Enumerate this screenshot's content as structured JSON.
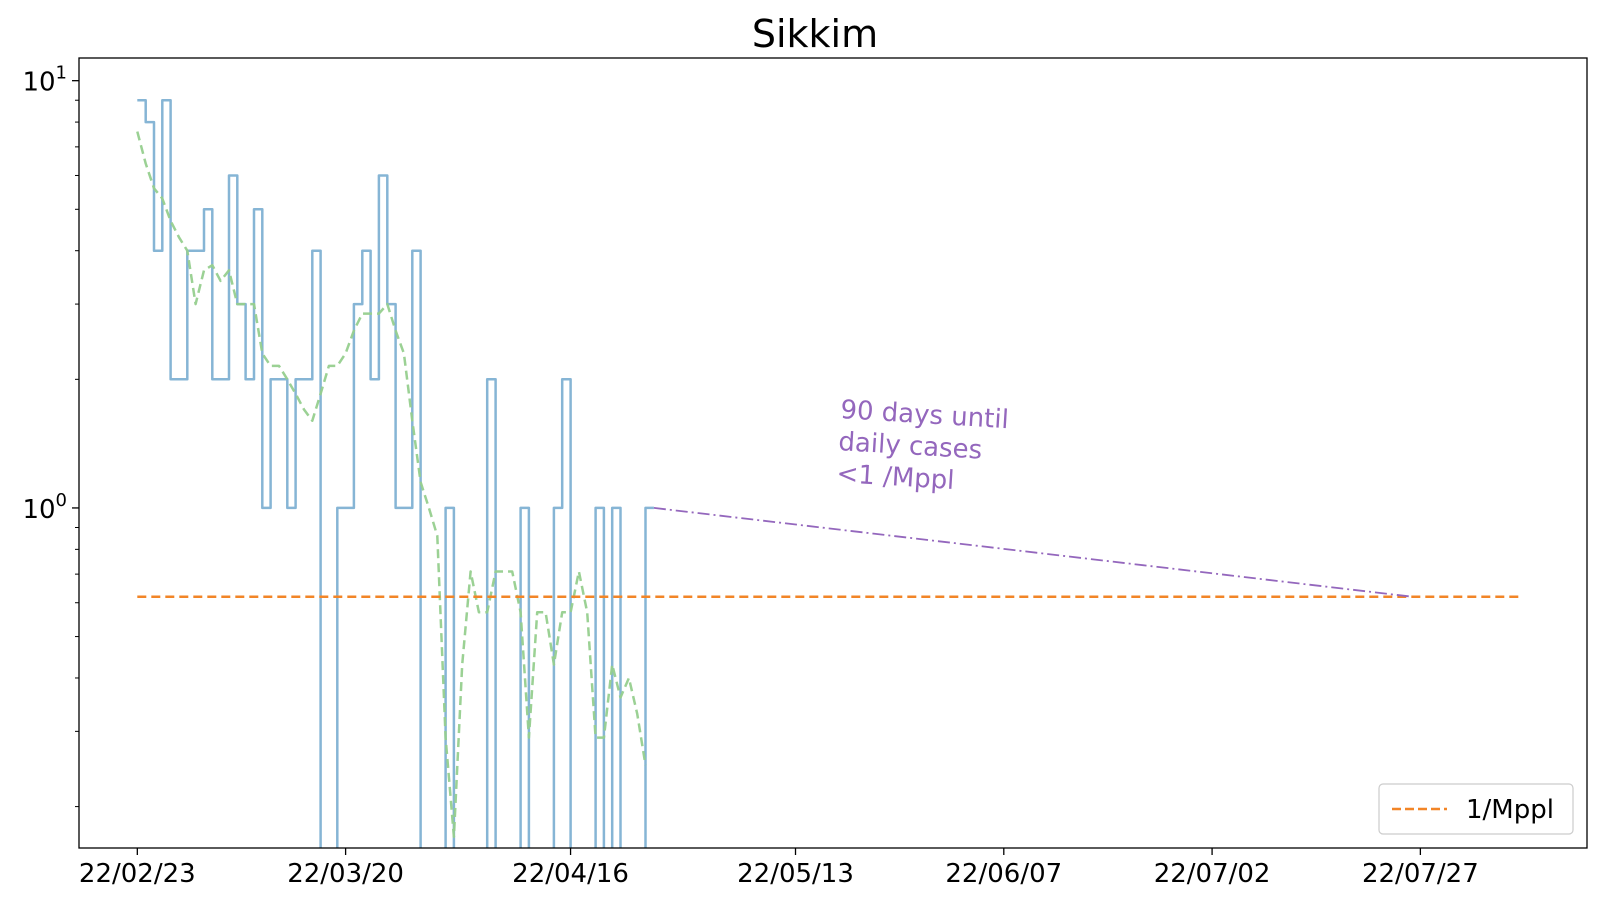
{
  "chart_data": {
    "type": "line",
    "title": "Sikkim",
    "xlabel": "",
    "ylabel": "",
    "yscale": "log",
    "ylim": [
      0.16,
      11.3
    ],
    "xlim": [
      "2022-02-16",
      "2022-08-16"
    ],
    "y_ticks": [
      {
        "value": 10,
        "base": "10",
        "exp": "1"
      },
      {
        "value": 1,
        "base": "10",
        "exp": "0"
      }
    ],
    "x_ticks": [
      {
        "date": "2022-02-23",
        "label": "22/02/23"
      },
      {
        "date": "2022-03-20",
        "label": "22/03/20"
      },
      {
        "date": "2022-04-16",
        "label": "22/04/16"
      },
      {
        "date": "2022-05-13",
        "label": "22/05/13"
      },
      {
        "date": "2022-06-07",
        "label": "22/06/07"
      },
      {
        "date": "2022-07-02",
        "label": "22/07/02"
      },
      {
        "date": "2022-07-27",
        "label": "22/07/27"
      }
    ],
    "grid": false,
    "legend_position": "bottom-right",
    "series": [
      {
        "kind": "daily",
        "color": "#7fb1d3",
        "style": "solid",
        "points": [
          [
            "2022-02-23",
            9
          ],
          [
            "2022-02-24",
            8
          ],
          [
            "2022-02-25",
            4
          ],
          [
            "2022-02-26",
            9
          ],
          [
            "2022-02-27",
            2
          ],
          [
            "2022-02-28",
            2
          ],
          [
            "2022-03-01",
            4
          ],
          [
            "2022-03-02",
            4
          ],
          [
            "2022-03-03",
            5
          ],
          [
            "2022-03-04",
            2
          ],
          [
            "2022-03-05",
            2
          ],
          [
            "2022-03-06",
            6
          ],
          [
            "2022-03-07",
            3
          ],
          [
            "2022-03-08",
            2
          ],
          [
            "2022-03-09",
            5
          ],
          [
            "2022-03-10",
            1
          ],
          [
            "2022-03-11",
            2
          ],
          [
            "2022-03-12",
            2
          ],
          [
            "2022-03-13",
            1
          ],
          [
            "2022-03-14",
            2
          ],
          [
            "2022-03-15",
            2
          ],
          [
            "2022-03-16",
            4
          ],
          [
            "2022-03-17",
            0
          ],
          [
            "2022-03-18",
            0
          ],
          [
            "2022-03-19",
            1
          ],
          [
            "2022-03-20",
            1
          ],
          [
            "2022-03-21",
            3
          ],
          [
            "2022-03-22",
            4
          ],
          [
            "2022-03-23",
            2
          ],
          [
            "2022-03-24",
            6
          ],
          [
            "2022-03-25",
            3
          ],
          [
            "2022-03-26",
            1
          ],
          [
            "2022-03-27",
            1
          ],
          [
            "2022-03-28",
            4
          ],
          [
            "2022-03-29",
            0
          ],
          [
            "2022-03-30",
            0
          ],
          [
            "2022-03-31",
            0
          ],
          [
            "2022-04-01",
            1
          ],
          [
            "2022-04-02",
            0
          ],
          [
            "2022-04-03",
            0
          ],
          [
            "2022-04-04",
            0
          ],
          [
            "2022-04-05",
            0
          ],
          [
            "2022-04-06",
            2
          ],
          [
            "2022-04-07",
            0
          ],
          [
            "2022-04-08",
            0
          ],
          [
            "2022-04-09",
            0
          ],
          [
            "2022-04-10",
            1
          ],
          [
            "2022-04-11",
            0
          ],
          [
            "2022-04-12",
            0
          ],
          [
            "2022-04-13",
            0
          ],
          [
            "2022-04-14",
            1
          ],
          [
            "2022-04-15",
            2
          ],
          [
            "2022-04-16",
            0
          ],
          [
            "2022-04-17",
            0
          ],
          [
            "2022-04-18",
            0
          ],
          [
            "2022-04-19",
            1
          ],
          [
            "2022-04-20",
            0
          ],
          [
            "2022-04-21",
            1
          ],
          [
            "2022-04-22",
            0
          ],
          [
            "2022-04-23",
            0
          ],
          [
            "2022-04-24",
            0
          ],
          [
            "2022-04-25",
            1
          ]
        ]
      },
      {
        "kind": "rolling-average",
        "color": "#96cf8e",
        "style": "dashed",
        "points": [
          [
            "2022-02-23",
            7.6
          ],
          [
            "2022-02-24",
            6.4
          ],
          [
            "2022-02-25",
            5.6
          ],
          [
            "2022-02-26",
            5.3
          ],
          [
            "2022-02-27",
            4.7
          ],
          [
            "2022-02-28",
            4.3
          ],
          [
            "2022-03-01",
            4.0
          ],
          [
            "2022-03-02",
            3.0
          ],
          [
            "2022-03-03",
            3.6
          ],
          [
            "2022-03-04",
            3.7
          ],
          [
            "2022-03-05",
            3.4
          ],
          [
            "2022-03-06",
            3.6
          ],
          [
            "2022-03-07",
            3.0
          ],
          [
            "2022-03-08",
            3.0
          ],
          [
            "2022-03-09",
            3.0
          ],
          [
            "2022-03-10",
            2.3
          ],
          [
            "2022-03-11",
            2.15
          ],
          [
            "2022-03-12",
            2.15
          ],
          [
            "2022-03-13",
            2.0
          ],
          [
            "2022-03-14",
            1.85
          ],
          [
            "2022-03-15",
            1.7
          ],
          [
            "2022-03-16",
            1.6
          ],
          [
            "2022-03-17",
            1.85
          ],
          [
            "2022-03-18",
            2.15
          ],
          [
            "2022-03-19",
            2.15
          ],
          [
            "2022-03-20",
            2.3
          ],
          [
            "2022-03-21",
            2.6
          ],
          [
            "2022-03-22",
            2.85
          ],
          [
            "2022-03-23",
            2.85
          ],
          [
            "2022-03-24",
            2.85
          ],
          [
            "2022-03-25",
            3.0
          ],
          [
            "2022-03-26",
            2.6
          ],
          [
            "2022-03-27",
            2.3
          ],
          [
            "2022-03-28",
            1.6
          ],
          [
            "2022-03-29",
            1.15
          ],
          [
            "2022-03-30",
            1.0
          ],
          [
            "2022-03-31",
            0.86
          ],
          [
            "2022-04-01",
            0.29
          ],
          [
            "2022-04-02",
            0.17
          ],
          [
            "2022-04-03",
            0.43
          ],
          [
            "2022-04-04",
            0.71
          ],
          [
            "2022-04-05",
            0.57
          ],
          [
            "2022-04-06",
            0.57
          ],
          [
            "2022-04-07",
            0.71
          ],
          [
            "2022-04-08",
            0.71
          ],
          [
            "2022-04-09",
            0.71
          ],
          [
            "2022-04-10",
            0.57
          ],
          [
            "2022-04-11",
            0.29
          ],
          [
            "2022-04-12",
            0.57
          ],
          [
            "2022-04-13",
            0.57
          ],
          [
            "2022-04-14",
            0.43
          ],
          [
            "2022-04-15",
            0.57
          ],
          [
            "2022-04-16",
            0.57
          ],
          [
            "2022-04-17",
            0.71
          ],
          [
            "2022-04-18",
            0.57
          ],
          [
            "2022-04-19",
            0.29
          ],
          [
            "2022-04-20",
            0.29
          ],
          [
            "2022-04-21",
            0.43
          ],
          [
            "2022-04-22",
            0.36
          ],
          [
            "2022-04-23",
            0.4
          ],
          [
            "2022-04-24",
            0.33
          ],
          [
            "2022-04-25",
            0.25
          ]
        ]
      },
      {
        "kind": "threshold",
        "name": "1/Mppl",
        "color": "#f28527",
        "style": "dashed",
        "points": [
          [
            "2022-02-23",
            0.62
          ],
          [
            "2022-08-08",
            0.62
          ]
        ]
      },
      {
        "kind": "projection",
        "color": "#9467bd",
        "style": "dash-dot",
        "points": [
          [
            "2022-04-26",
            1.0
          ],
          [
            "2022-07-26",
            0.62
          ]
        ]
      }
    ],
    "annotations": [
      {
        "lines": [
          "90 days until",
          "daily cases",
          "<1 /Mppl"
        ],
        "color": "#9467bd"
      }
    ]
  }
}
